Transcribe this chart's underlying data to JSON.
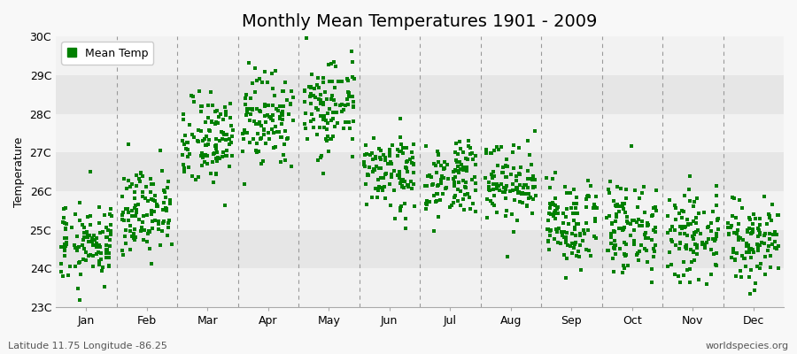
{
  "title": "Monthly Mean Temperatures 1901 - 2009",
  "ylabel": "Temperature",
  "ylim": [
    23,
    30
  ],
  "ytick_labels": [
    "23C",
    "24C",
    "25C",
    "26C",
    "27C",
    "28C",
    "29C",
    "30C"
  ],
  "ytick_values": [
    23,
    24,
    25,
    26,
    27,
    28,
    29,
    30
  ],
  "months": [
    "Jan",
    "Feb",
    "Mar",
    "Apr",
    "May",
    "Jun",
    "Jul",
    "Aug",
    "Sep",
    "Oct",
    "Nov",
    "Dec"
  ],
  "legend_label": "Mean Temp",
  "marker_color": "#008000",
  "bg_light": "#f2f2f2",
  "bg_dark": "#e6e6e6",
  "footer_left": "Latitude 11.75 Longitude -86.25",
  "footer_right": "worldspecies.org",
  "title_fontsize": 14,
  "axis_fontsize": 9,
  "tick_fontsize": 9,
  "footer_fontsize": 8,
  "years": 109,
  "monthly_means": [
    24.7,
    25.5,
    27.2,
    27.9,
    28.2,
    26.5,
    26.4,
    26.2,
    25.2,
    25.0,
    24.8,
    24.8
  ],
  "monthly_stds": [
    0.45,
    0.5,
    0.55,
    0.55,
    0.55,
    0.5,
    0.5,
    0.5,
    0.5,
    0.5,
    0.5,
    0.5
  ],
  "monthly_extra_spread": [
    0.6,
    0.7,
    0.6,
    0.6,
    0.6,
    0.5,
    0.5,
    0.6,
    0.6,
    0.7,
    0.7,
    0.7
  ],
  "seed": 42
}
